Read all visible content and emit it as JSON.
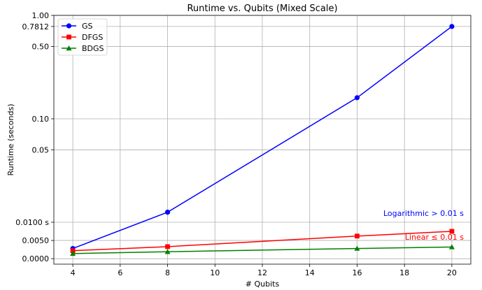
{
  "chart_data": {
    "type": "line",
    "title": "Runtime vs. Qubits (Mixed Scale)",
    "xlabel": "# Qubits",
    "ylabel": "Runtime (seconds)",
    "x_ticks": [
      4,
      6,
      8,
      10,
      12,
      14,
      16,
      18,
      20
    ],
    "y_ticks": [
      {
        "value": 0.0,
        "label": "0.0000"
      },
      {
        "value": 0.005,
        "label": "0.0050"
      },
      {
        "value": 0.01,
        "label": "0.0100 s"
      },
      {
        "value": 0.05,
        "label": "0.05"
      },
      {
        "value": 0.1,
        "label": "0.10"
      },
      {
        "value": 0.5,
        "label": "0.50"
      },
      {
        "value": 0.7812,
        "label": "0.7812"
      },
      {
        "value": 1.0,
        "label": "1.00"
      }
    ],
    "xlim": [
      3.2,
      20.8
    ],
    "ylim": [
      -0.0015,
      1.0
    ],
    "scale": "mixed: linear below 0.01 s, logarithmic above 0.01 s",
    "grid": true,
    "legend_position": "top-left",
    "series": [
      {
        "name": "GS",
        "color": "#0000ff",
        "marker": "circle",
        "x": [
          4,
          8,
          16,
          20
        ],
        "y": [
          0.0028,
          0.0125,
          0.16,
          0.7812
        ]
      },
      {
        "name": "DFGS",
        "color": "#ff0000",
        "marker": "square",
        "x": [
          4,
          8,
          16,
          20
        ],
        "y": [
          0.0022,
          0.0033,
          0.0062,
          0.0075
        ]
      },
      {
        "name": "BDGS",
        "color": "#008000",
        "marker": "triangle",
        "x": [
          4,
          8,
          16,
          20
        ],
        "y": [
          0.0014,
          0.0019,
          0.0028,
          0.0032
        ]
      }
    ],
    "annotations": [
      {
        "text": "Logarithmic > 0.01 s",
        "color": "#0000ff"
      },
      {
        "text": "Linear ≤ 0.01 s",
        "color": "#ff0000"
      }
    ]
  }
}
